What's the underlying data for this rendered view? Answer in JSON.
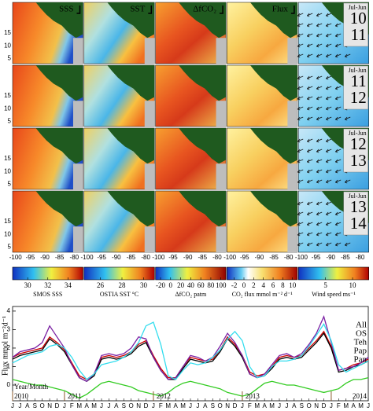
{
  "maps": {
    "titles": [
      "SSS",
      "SST",
      "ΔfCO₂",
      "Flux"
    ],
    "rows": [
      {
        "period": "Jul-Jun",
        "years": [
          "10",
          "11"
        ]
      },
      {
        "period": "Jul-Jun",
        "years": [
          "11",
          "12"
        ]
      },
      {
        "period": "Jul-Jun",
        "years": [
          "12",
          "13"
        ]
      },
      {
        "period": "Jul-Jun",
        "years": [
          "13",
          "14"
        ]
      }
    ],
    "yticks": [
      15,
      10,
      5
    ],
    "ylim": [
      3,
      27
    ],
    "xticks": [
      -100,
      -95,
      -90,
      -85,
      -80
    ],
    "xlim": [
      -101,
      -77
    ],
    "colorbars": [
      {
        "label": "SMOS SSS",
        "ticks": [
          30,
          32,
          34
        ],
        "lim": [
          28.5,
          35.5
        ]
      },
      {
        "label": "OSTIA SST °C",
        "ticks": [
          26,
          28,
          30
        ],
        "lim": [
          24.5,
          31
        ]
      },
      {
        "label": "ΔfCO₂ patm",
        "ticks": [
          -20,
          0,
          20,
          40,
          60,
          80,
          100
        ],
        "lim": [
          -30,
          110
        ]
      },
      {
        "label": "CO₂ flux mmol m⁻² d⁻¹",
        "ticks": [
          -2,
          0,
          2,
          4,
          6,
          8,
          10
        ],
        "lim": [
          -3.5,
          11
        ]
      },
      {
        "label": "Wind speed ms⁻¹",
        "ticks": [
          5,
          10
        ],
        "lim": [
          0,
          13
        ]
      }
    ]
  },
  "chart_data": {
    "type": "line",
    "y_label": "Flux mmol m⁻²d⁻¹",
    "x_label": "Year/Month",
    "years": [
      "2010",
      "2011",
      "2012",
      "2013",
      "2014"
    ],
    "categories": [
      "J",
      "J",
      "A",
      "S",
      "O",
      "N",
      "D",
      "J",
      "F",
      "M",
      "A",
      "M",
      "J",
      "J",
      "A",
      "S",
      "O",
      "N",
      "D",
      "J",
      "F",
      "M",
      "A",
      "M",
      "J",
      "J",
      "A",
      "S",
      "O",
      "N",
      "D",
      "J",
      "F",
      "M",
      "A",
      "M",
      "J",
      "J",
      "A",
      "S",
      "O",
      "N",
      "D",
      "J",
      "F",
      "M",
      "A",
      "M",
      "J"
    ],
    "ylim": [
      -0.85,
      4.25
    ],
    "yticks": [
      0,
      1,
      2,
      3,
      4
    ],
    "legend": "right",
    "series": [
      {
        "name": "All",
        "color": "#cc0000",
        "values": [
          1.5,
          1.7,
          1.8,
          1.9,
          2.0,
          2.6,
          2.3,
          1.9,
          1.2,
          0.5,
          0.3,
          0.6,
          1.5,
          1.6,
          1.5,
          1.6,
          1.8,
          2.2,
          2.4,
          1.6,
          0.9,
          0.4,
          0.4,
          1.0,
          1.5,
          1.4,
          1.3,
          1.4,
          1.9,
          2.6,
          2.2,
          1.6,
          0.7,
          0.5,
          0.6,
          1.0,
          1.5,
          1.6,
          1.5,
          1.6,
          2.0,
          2.4,
          2.9,
          2.1,
          0.8,
          0.9,
          1.1,
          1.2,
          1.4
        ]
      },
      {
        "name": "OS",
        "color": "#000000",
        "values": [
          1.4,
          1.6,
          1.7,
          1.8,
          1.9,
          2.5,
          2.2,
          1.8,
          1.1,
          0.4,
          0.2,
          0.5,
          1.4,
          1.5,
          1.4,
          1.5,
          1.7,
          2.1,
          2.3,
          1.5,
          0.8,
          0.3,
          0.3,
          0.9,
          1.4,
          1.3,
          1.2,
          1.3,
          1.8,
          2.5,
          2.1,
          1.5,
          0.6,
          0.4,
          0.5,
          0.9,
          1.4,
          1.5,
          1.4,
          1.5,
          1.9,
          2.3,
          2.8,
          2.0,
          0.7,
          0.8,
          1.0,
          1.1,
          1.3
        ]
      },
      {
        "name": "Teh",
        "color": "#7a1fa2",
        "values": [
          1.5,
          1.8,
          1.9,
          2.0,
          2.3,
          3.2,
          2.6,
          2.0,
          1.1,
          0.4,
          0.2,
          0.6,
          1.6,
          1.7,
          1.6,
          1.7,
          2.0,
          2.6,
          2.5,
          1.5,
          0.8,
          0.3,
          0.4,
          1.0,
          1.6,
          1.5,
          1.3,
          1.5,
          2.1,
          2.8,
          2.3,
          1.6,
          0.6,
          0.4,
          0.6,
          1.1,
          1.6,
          1.7,
          1.5,
          1.7,
          2.2,
          2.8,
          3.7,
          2.3,
          0.8,
          0.9,
          1.0,
          1.2,
          1.5
        ]
      },
      {
        "name": "Pap",
        "color": "#33ddee",
        "values": [
          1.2,
          1.4,
          1.6,
          1.7,
          1.8,
          2.1,
          2.2,
          2.0,
          1.5,
          0.8,
          0.3,
          0.6,
          1.1,
          1.2,
          1.3,
          1.5,
          1.8,
          2.3,
          3.2,
          3.4,
          2.2,
          0.5,
          0.3,
          0.8,
          1.2,
          1.1,
          1.2,
          1.5,
          1.9,
          2.5,
          2.9,
          2.4,
          1.0,
          0.4,
          0.5,
          1.0,
          1.3,
          1.3,
          1.4,
          1.6,
          2.1,
          2.7,
          3.3,
          2.4,
          1.1,
          0.7,
          0.9,
          1.1,
          1.3
        ]
      },
      {
        "name": "Pan",
        "color": "#33cc22",
        "values": [
          0.3,
          0.2,
          0.1,
          0.0,
          0.0,
          -0.1,
          -0.2,
          -0.3,
          -0.5,
          -0.7,
          -0.5,
          -0.2,
          0.1,
          0.2,
          0.1,
          0.0,
          -0.1,
          -0.3,
          -0.4,
          -0.5,
          -0.6,
          -0.4,
          -0.1,
          0.1,
          0.2,
          0.1,
          0.0,
          -0.1,
          -0.2,
          -0.4,
          -0.5,
          -0.6,
          -0.5,
          -0.2,
          0.1,
          0.2,
          0.1,
          0.0,
          0.0,
          -0.1,
          -0.2,
          -0.3,
          -0.4,
          -0.3,
          -0.2,
          0.1,
          0.3,
          0.3,
          0.4
        ]
      }
    ]
  }
}
